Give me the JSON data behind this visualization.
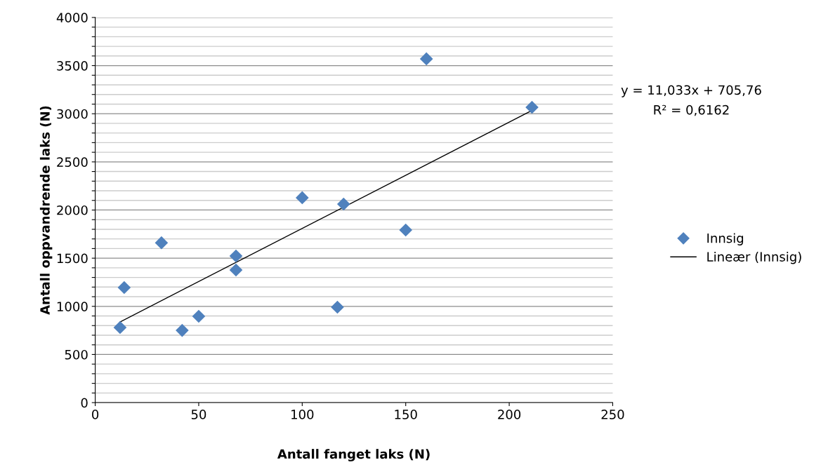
{
  "chart_data": {
    "type": "scatter",
    "xlabel": "Antall fanget laks (N)",
    "ylabel": "Antall oppvandrende laks (N)",
    "xlim": [
      0,
      250
    ],
    "xticks": [
      0,
      50,
      100,
      150,
      200,
      250
    ],
    "ylim": [
      0,
      4000
    ],
    "yticks": [
      0,
      {
        "value": 100,
        "label": null
      },
      {
        "value": 200,
        "label": null
      },
      {
        "value": 300,
        "label": null
      },
      {
        "value": 400,
        "label": null
      },
      500,
      {
        "value": 600,
        "label": null
      },
      {
        "value": 700,
        "label": null
      },
      {
        "value": 800,
        "label": null
      },
      {
        "value": 900,
        "label": null
      },
      1000,
      {
        "value": 1100,
        "label": null
      },
      {
        "value": 1200,
        "label": null
      },
      {
        "value": 1300,
        "label": null
      },
      {
        "value": 1400,
        "label": null
      },
      1500,
      {
        "value": 1600,
        "label": null
      },
      {
        "value": 1700,
        "label": null
      },
      {
        "value": 1800,
        "label": null
      },
      {
        "value": 1900,
        "label": null
      },
      2000,
      {
        "value": 2100,
        "label": null
      },
      {
        "value": 2200,
        "label": null
      },
      {
        "value": 2300,
        "label": null
      },
      {
        "value": 2400,
        "label": null
      },
      2500,
      {
        "value": 2600,
        "label": null
      },
      {
        "value": 2700,
        "label": null
      },
      {
        "value": 2800,
        "label": null
      },
      {
        "value": 2900,
        "label": null
      },
      3000,
      {
        "value": 3100,
        "label": null
      },
      {
        "value": 3200,
        "label": null
      },
      {
        "value": 3300,
        "label": null
      },
      {
        "value": 3400,
        "label": null
      },
      3500,
      {
        "value": 3600,
        "label": null
      },
      {
        "value": 3700,
        "label": null
      },
      {
        "value": 3800,
        "label": null
      },
      {
        "value": 3900,
        "label": null
      },
      4000
    ],
    "grid": "y",
    "legend": "right",
    "series": [
      {
        "name": "Innsig",
        "marker": "diamond",
        "color": "#4f81bd",
        "x": [
          12,
          14,
          32,
          42,
          50,
          68,
          68,
          100,
          120,
          117,
          150,
          160,
          211
        ],
        "values": [
          780,
          1195,
          1660,
          750,
          896,
          1523,
          1377,
          2128,
          2062,
          991,
          1792,
          3570,
          3067
        ]
      },
      {
        "name": "Lineær (Innsig)",
        "type": "line",
        "marker": "none",
        "color": "#000000",
        "x": [
          12,
          211
        ],
        "values": [
          838,
          3034
        ]
      }
    ],
    "annotations": [
      "y = 11,033x + 705,76",
      "R² = 0,6162"
    ]
  }
}
